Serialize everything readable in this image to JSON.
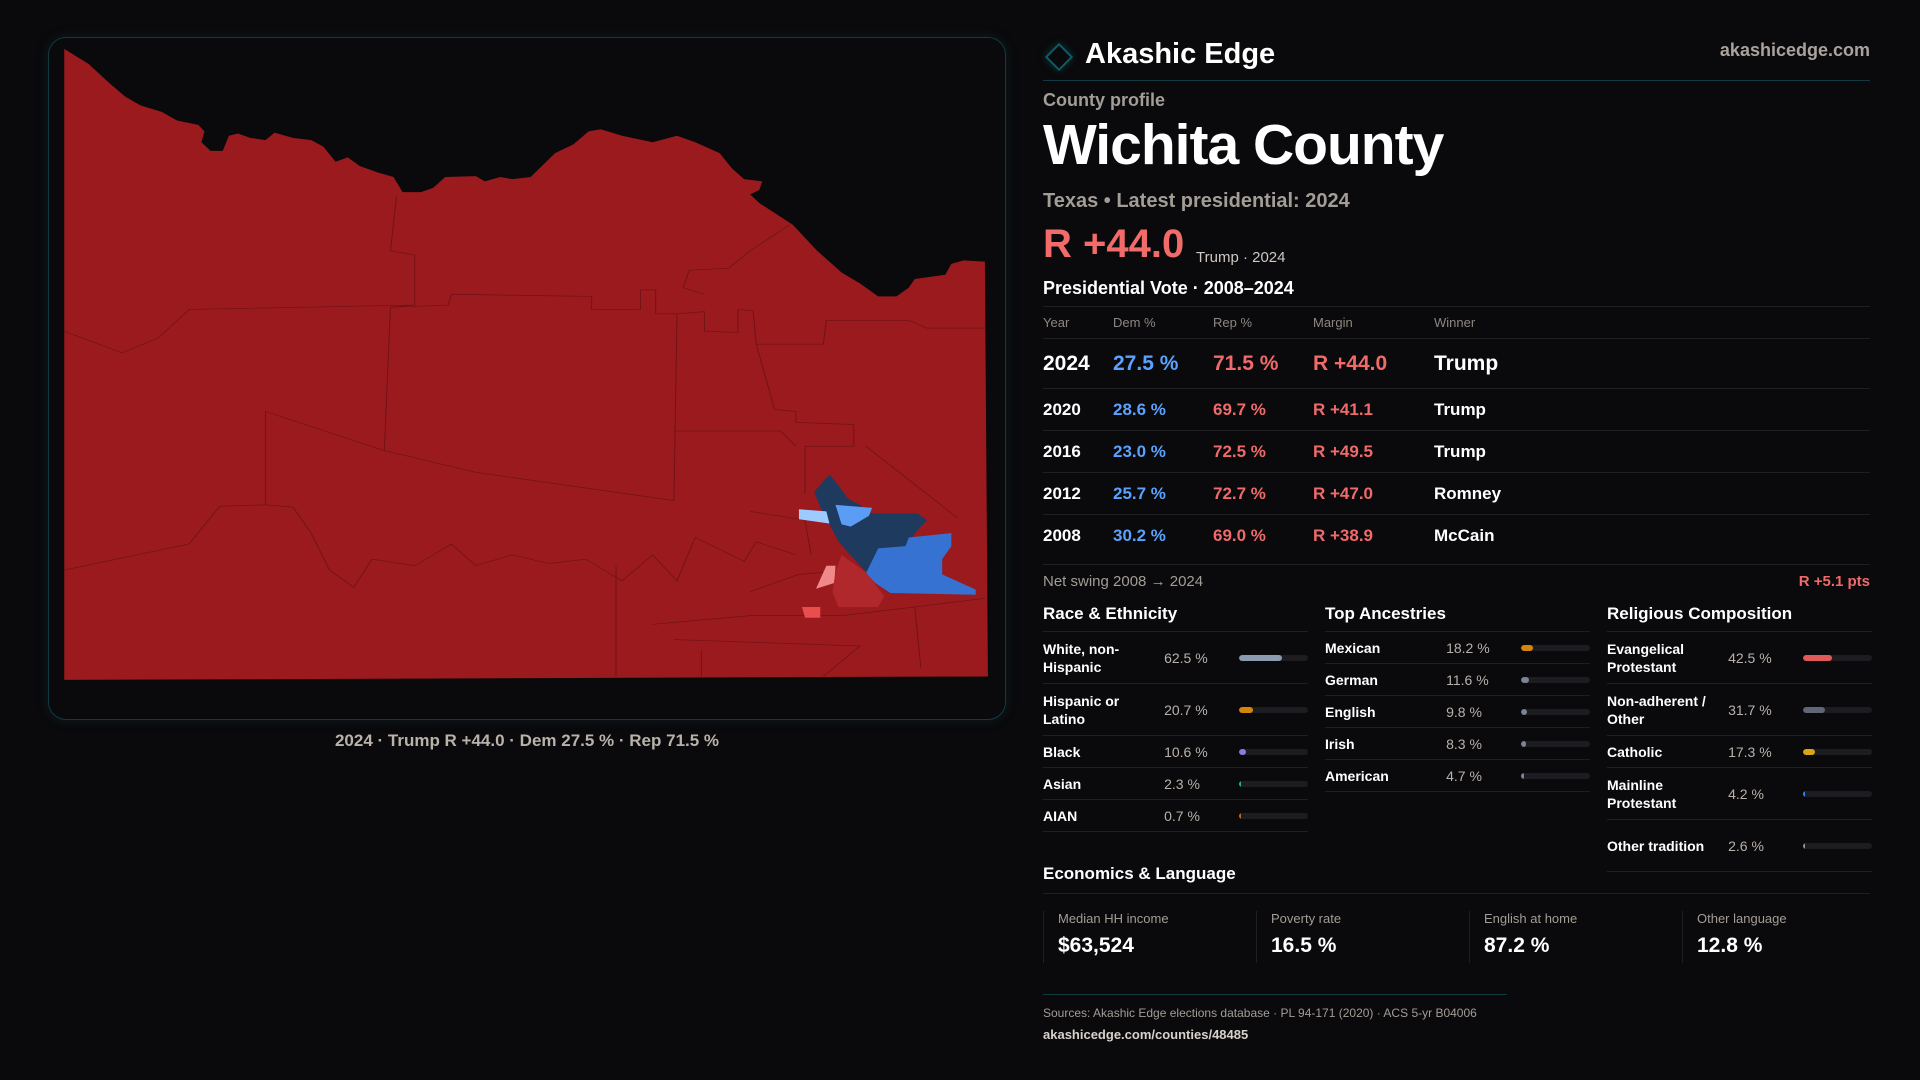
{
  "brand": {
    "name": "Akashic Edge",
    "site": "akashicedge.com"
  },
  "colors": {
    "background": "#0a090b",
    "rep": "#f06a6a",
    "dem": "#5aa2ff",
    "map_rep_strong": "#9a1a1d",
    "map_dem_strong": "#1e3a5f",
    "accent": "#0f5a63"
  },
  "profile": {
    "kicker": "County profile",
    "title": "Wichita County",
    "subtitle": "Texas • Latest presidential: 2024",
    "margin": "R +44.0",
    "margin_note": "Trump · 2024"
  },
  "map": {
    "caption": "2024 · Trump R +44.0 · Dem 27.5 % · Rep 71.5 %"
  },
  "vote": {
    "title": "Presidential Vote · 2008–2024",
    "headers": [
      "Year",
      "Dem %",
      "Rep %",
      "Margin",
      "Winner"
    ],
    "rows": [
      {
        "year": "2024",
        "dem": "27.5 %",
        "rep": "71.5 %",
        "margin": "R +44.0",
        "winner": "Trump"
      },
      {
        "year": "2020",
        "dem": "28.6 %",
        "rep": "69.7 %",
        "margin": "R +41.1",
        "winner": "Trump"
      },
      {
        "year": "2016",
        "dem": "23.0 %",
        "rep": "72.5 %",
        "margin": "R +49.5",
        "winner": "Trump"
      },
      {
        "year": "2012",
        "dem": "25.7 %",
        "rep": "72.7 %",
        "margin": "R +47.0",
        "winner": "Romney"
      },
      {
        "year": "2008",
        "dem": "30.2 %",
        "rep": "69.0 %",
        "margin": "R +38.9",
        "winner": "McCain"
      }
    ],
    "swing_label": "Net swing 2008 → 2024",
    "swing_value": "R +5.1 pts"
  },
  "race": {
    "title": "Race & Ethnicity",
    "items": [
      {
        "label": "White, non-Hispanic",
        "value": "62.5 %",
        "pct": 62.5,
        "color": "#8c9bb0"
      },
      {
        "label": "Hispanic or Latino",
        "value": "20.7 %",
        "pct": 20.7,
        "color": "#d4860b"
      },
      {
        "label": "Black",
        "value": "10.6 %",
        "pct": 10.6,
        "color": "#8b7be0"
      },
      {
        "label": "Asian",
        "value": "2.3 %",
        "pct": 2.3,
        "color": "#1fb58f"
      },
      {
        "label": "AIAN",
        "value": "0.7 %",
        "pct": 0.7,
        "color": "#c8641a"
      }
    ]
  },
  "ancestry": {
    "title": "Top Ancestries",
    "items": [
      {
        "label": "Mexican",
        "value": "18.2 %",
        "pct": 18.2,
        "color": "#d4860b"
      },
      {
        "label": "German",
        "value": "11.6 %",
        "pct": 11.6,
        "color": "#7a8494"
      },
      {
        "label": "English",
        "value": "9.8 %",
        "pct": 9.8,
        "color": "#7a8494"
      },
      {
        "label": "Irish",
        "value": "8.3 %",
        "pct": 8.3,
        "color": "#7a8494"
      },
      {
        "label": "American",
        "value": "4.7 %",
        "pct": 4.7,
        "color": "#7a8494"
      }
    ]
  },
  "religion": {
    "title": "Religious Composition",
    "items": [
      {
        "label": "Evangelical Protestant",
        "value": "42.5 %",
        "pct": 42.5,
        "color": "#e05a5a"
      },
      {
        "label": "Non-adherent / Other",
        "value": "31.7 %",
        "pct": 31.7,
        "color": "#5f6675"
      },
      {
        "label": "Catholic",
        "value": "17.3 %",
        "pct": 17.3,
        "color": "#d9a514"
      },
      {
        "label": "Mainline Protestant",
        "value": "4.2 %",
        "pct": 4.2,
        "color": "#3b82f6"
      },
      {
        "label": "Other tradition",
        "value": "2.6 %",
        "pct": 2.6,
        "color": "#8a8f99"
      }
    ]
  },
  "econ": {
    "title": "Economics & Language",
    "cards": [
      {
        "label": "Median HH income",
        "value": "$63,524"
      },
      {
        "label": "Poverty rate",
        "value": "16.5 %"
      },
      {
        "label": "English at home",
        "value": "87.2 %"
      },
      {
        "label": "Other language",
        "value": "12.8 %"
      }
    ]
  },
  "footer": {
    "sources": "Sources: Akashic Edge elections database · PL 94-171 (2020) · ACS 5-yr B04006",
    "url": "akashicedge.com/counties/48485"
  }
}
